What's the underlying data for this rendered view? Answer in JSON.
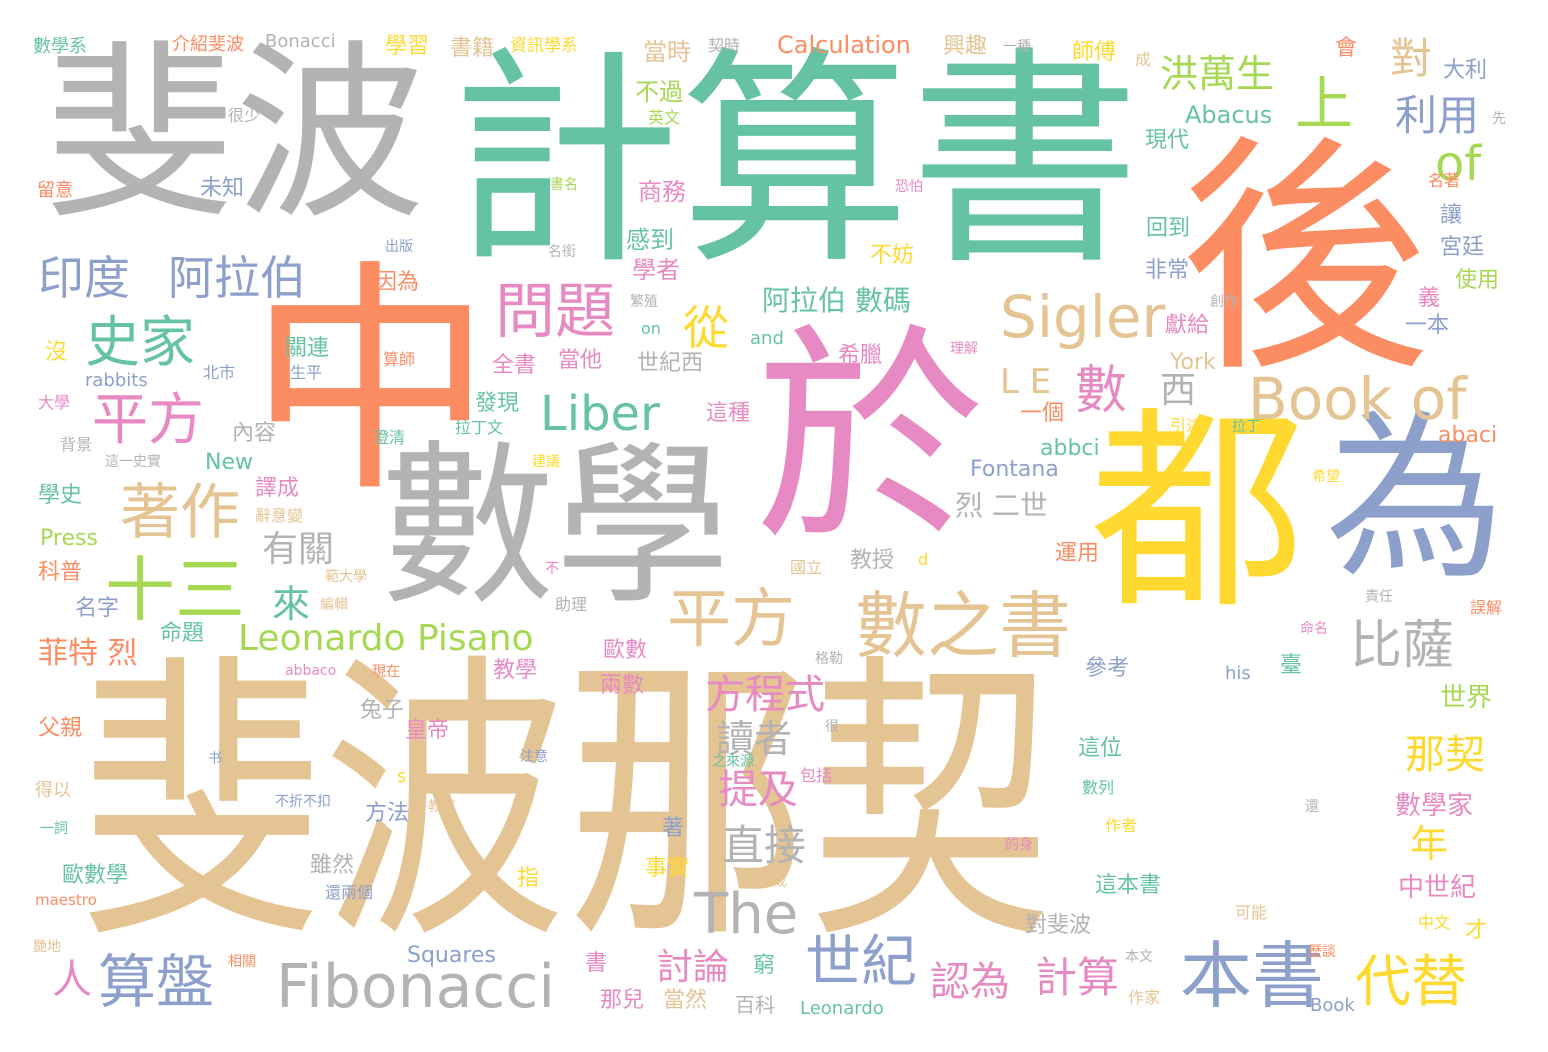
{
  "palette": {
    "teal": "#66c2a5",
    "orange": "#fc8d62",
    "blue": "#8da0cb",
    "pink": "#e78ac3",
    "green": "#a6d854",
    "yellow": "#ffd92f",
    "tan": "#e5c494",
    "gray": "#b3b3b3"
  },
  "words": [
    {
      "text": "斐波那契",
      "color": "tan"
    },
    {
      "text": "計算書",
      "color": "teal"
    },
    {
      "text": "斐波",
      "color": "gray"
    },
    {
      "text": "於",
      "color": "pink"
    },
    {
      "text": "數學",
      "color": "gray"
    },
    {
      "text": "中",
      "color": "orange"
    },
    {
      "text": "後",
      "color": "orange"
    },
    {
      "text": "都",
      "color": "yellow"
    },
    {
      "text": "為",
      "color": "blue"
    },
    {
      "text": "Fibonacci",
      "color": "gray"
    },
    {
      "text": "數之書",
      "color": "tan"
    },
    {
      "text": "本書",
      "color": "blue"
    },
    {
      "text": "Sigler",
      "color": "tan"
    },
    {
      "text": "Book of",
      "color": "tan"
    },
    {
      "text": "The",
      "color": "gray"
    },
    {
      "text": "Liber",
      "color": "teal"
    },
    {
      "text": "Leonardo Pisano",
      "color": "green"
    },
    {
      "text": "平方",
      "color": "tan"
    },
    {
      "text": "著作",
      "color": "tan"
    },
    {
      "text": "十三",
      "color": "green"
    },
    {
      "text": "問題",
      "color": "pink"
    },
    {
      "text": "史家",
      "color": "teal"
    },
    {
      "text": "印度",
      "color": "blue"
    },
    {
      "text": "阿拉伯",
      "color": "blue"
    },
    {
      "text": "平方",
      "color": "pink"
    },
    {
      "text": "算盤",
      "color": "blue"
    },
    {
      "text": "世紀",
      "color": "blue"
    },
    {
      "text": "代替",
      "color": "yellow"
    },
    {
      "text": "比薩",
      "color": "gray"
    },
    {
      "text": "洪萬生",
      "color": "green"
    },
    {
      "text": "上",
      "color": "green"
    },
    {
      "text": "of",
      "color": "green"
    },
    {
      "text": "從",
      "color": "yellow"
    },
    {
      "text": "數",
      "color": "pink"
    },
    {
      "text": "利用",
      "color": "blue"
    },
    {
      "text": "對",
      "color": "tan"
    },
    {
      "text": "方程式",
      "color": "pink"
    },
    {
      "text": "直接",
      "color": "gray"
    },
    {
      "text": "讀者",
      "color": "gray"
    },
    {
      "text": "提及",
      "color": "pink"
    },
    {
      "text": "那契",
      "color": "yellow"
    },
    {
      "text": "計算",
      "color": "pink"
    },
    {
      "text": "認為",
      "color": "pink"
    },
    {
      "text": "討論",
      "color": "pink"
    },
    {
      "text": "有關",
      "color": "gray"
    },
    {
      "text": "來",
      "color": "teal"
    },
    {
      "text": "人",
      "color": "pink"
    },
    {
      "text": "L E",
      "color": "tan"
    },
    {
      "text": "西",
      "color": "gray"
    },
    {
      "text": "阿拉伯 數碼",
      "color": "teal"
    },
    {
      "text": "Calculation",
      "color": "orange"
    },
    {
      "text": "年",
      "color": "yellow"
    },
    {
      "text": "菲特 烈",
      "color": "orange"
    },
    {
      "text": "烈 二世",
      "color": "gray"
    },
    {
      "text": "中世紀",
      "color": "pink"
    },
    {
      "text": "數學家",
      "color": "pink"
    },
    {
      "text": "世界",
      "color": "green"
    },
    {
      "text": "Abacus",
      "color": "teal"
    },
    {
      "text": "Fontana",
      "color": "blue"
    },
    {
      "text": "abbci",
      "color": "teal"
    },
    {
      "text": "abaci",
      "color": "orange"
    },
    {
      "text": "York",
      "color": "tan"
    },
    {
      "text": "New",
      "color": "teal"
    },
    {
      "text": "Press",
      "color": "green"
    },
    {
      "text": "Squares",
      "color": "blue"
    },
    {
      "text": "Bonacci",
      "color": "gray"
    },
    {
      "text": "rabbits",
      "color": "blue"
    },
    {
      "text": "and",
      "color": "teal"
    },
    {
      "text": "on",
      "color": "teal"
    },
    {
      "text": "his",
      "color": "blue"
    },
    {
      "text": "Leonardo",
      "color": "teal"
    },
    {
      "text": "Book",
      "color": "blue"
    },
    {
      "text": "maestro",
      "color": "orange"
    },
    {
      "text": "abbaco",
      "color": "pink"
    },
    {
      "text": "數學系",
      "color": "teal"
    },
    {
      "text": "介紹斐波",
      "color": "orange"
    },
    {
      "text": "學習",
      "color": "yellow"
    },
    {
      "text": "書籍",
      "color": "tan"
    },
    {
      "text": "資訊學系",
      "color": "yellow"
    },
    {
      "text": "當時",
      "color": "tan"
    },
    {
      "text": "契時",
      "color": "gray"
    },
    {
      "text": "興趣",
      "color": "tan"
    },
    {
      "text": "一種",
      "color": "gray"
    },
    {
      "text": "師傅",
      "color": "yellow"
    },
    {
      "text": "成",
      "color": "tan"
    },
    {
      "text": "會",
      "color": "orange"
    },
    {
      "text": "大利",
      "color": "blue"
    },
    {
      "text": "不過",
      "color": "green"
    },
    {
      "text": "英文",
      "color": "green"
    },
    {
      "text": "現代",
      "color": "teal"
    },
    {
      "text": "先",
      "color": "gray"
    },
    {
      "text": "很少",
      "color": "gray"
    },
    {
      "text": "未知",
      "color": "blue"
    },
    {
      "text": "留意",
      "color": "orange"
    },
    {
      "text": "書名",
      "color": "green"
    },
    {
      "text": "商務",
      "color": "pink"
    },
    {
      "text": "恐怕",
      "color": "pink"
    },
    {
      "text": "名著",
      "color": "orange"
    },
    {
      "text": "出版",
      "color": "blue"
    },
    {
      "text": "名銜",
      "color": "gray"
    },
    {
      "text": "感到",
      "color": "teal"
    },
    {
      "text": "學者",
      "color": "pink"
    },
    {
      "text": "回到",
      "color": "teal"
    },
    {
      "text": "不妨",
      "color": "yellow"
    },
    {
      "text": "讓",
      "color": "blue"
    },
    {
      "text": "宮廷",
      "color": "blue"
    },
    {
      "text": "因為",
      "color": "orange"
    },
    {
      "text": "繁殖",
      "color": "gray"
    },
    {
      "text": "非常",
      "color": "blue"
    },
    {
      "text": "創作",
      "color": "gray"
    },
    {
      "text": "使用",
      "color": "green"
    },
    {
      "text": "義",
      "color": "pink"
    },
    {
      "text": "一本",
      "color": "blue"
    },
    {
      "text": "獻給",
      "color": "pink"
    },
    {
      "text": "理解",
      "color": "pink"
    },
    {
      "text": "沒",
      "color": "yellow"
    },
    {
      "text": "關連",
      "color": "teal"
    },
    {
      "text": "生平",
      "color": "blue"
    },
    {
      "text": "算師",
      "color": "orange"
    },
    {
      "text": "全書",
      "color": "pink"
    },
    {
      "text": "當他",
      "color": "pink"
    },
    {
      "text": "世紀西",
      "color": "gray"
    },
    {
      "text": "希臘",
      "color": "pink"
    },
    {
      "text": "北市",
      "color": "blue"
    },
    {
      "text": "大學",
      "color": "pink"
    },
    {
      "text": "發現",
      "color": "teal"
    },
    {
      "text": "一個",
      "color": "orange"
    },
    {
      "text": "這種",
      "color": "pink"
    },
    {
      "text": "背景",
      "color": "gray"
    },
    {
      "text": "拉丁文",
      "color": "teal"
    },
    {
      "text": "內容",
      "color": "gray"
    },
    {
      "text": "澄清",
      "color": "teal"
    },
    {
      "text": "引述",
      "color": "yellow"
    },
    {
      "text": "拉丁",
      "color": "teal"
    },
    {
      "text": "這一史實",
      "color": "gray"
    },
    {
      "text": "建議",
      "color": "yellow"
    },
    {
      "text": "學史",
      "color": "teal"
    },
    {
      "text": "譯成",
      "color": "pink"
    },
    {
      "text": "辭意變",
      "color": "tan"
    },
    {
      "text": "希望",
      "color": "yellow"
    },
    {
      "text": "教授",
      "color": "gray"
    },
    {
      "text": "d",
      "color": "yellow"
    },
    {
      "text": "運用",
      "color": "orange"
    },
    {
      "text": "科普",
      "color": "orange"
    },
    {
      "text": "不",
      "color": "pink"
    },
    {
      "text": "範大學",
      "color": "tan"
    },
    {
      "text": "國立",
      "color": "tan"
    },
    {
      "text": "名字",
      "color": "blue"
    },
    {
      "text": "編輯",
      "color": "tan"
    },
    {
      "text": "助理",
      "color": "gray"
    },
    {
      "text": "責任",
      "color": "gray"
    },
    {
      "text": "誤解",
      "color": "orange"
    },
    {
      "text": "命題",
      "color": "teal"
    },
    {
      "text": "歐數",
      "color": "pink"
    },
    {
      "text": "格勒",
      "color": "gray"
    },
    {
      "text": "命名",
      "color": "pink"
    },
    {
      "text": "參考",
      "color": "blue"
    },
    {
      "text": "臺",
      "color": "teal"
    },
    {
      "text": "教學",
      "color": "pink"
    },
    {
      "text": "現在",
      "color": "orange"
    },
    {
      "text": "兩數",
      "color": "pink"
    },
    {
      "text": "兔子",
      "color": "gray"
    },
    {
      "text": "父親",
      "color": "orange"
    },
    {
      "text": "皇帝",
      "color": "pink"
    },
    {
      "text": "很",
      "color": "gray"
    },
    {
      "text": "這位",
      "color": "teal"
    },
    {
      "text": "包括",
      "color": "pink"
    },
    {
      "text": "之來源",
      "color": "teal"
    },
    {
      "text": "注意",
      "color": "blue"
    },
    {
      "text": "书",
      "color": "blue"
    },
    {
      "text": "s",
      "color": "yellow"
    },
    {
      "text": "得以",
      "color": "tan"
    },
    {
      "text": "不折不扣",
      "color": "blue"
    },
    {
      "text": "數列",
      "color": "teal"
    },
    {
      "text": "還",
      "color": "gray"
    },
    {
      "text": "方法",
      "color": "blue"
    },
    {
      "text": "教育",
      "color": "tan"
    },
    {
      "text": "一詞",
      "color": "teal"
    },
    {
      "text": "著",
      "color": "blue"
    },
    {
      "text": "作者",
      "color": "yellow"
    },
    {
      "text": "的身",
      "color": "pink"
    },
    {
      "text": "雖然",
      "color": "gray"
    },
    {
      "text": "事實",
      "color": "yellow"
    },
    {
      "text": "指",
      "color": "yellow"
    },
    {
      "text": "歐數學",
      "color": "teal"
    },
    {
      "text": "這本書",
      "color": "teal"
    },
    {
      "text": "還兩個",
      "color": "blue"
    },
    {
      "text": "直譯成",
      "color": "tan"
    },
    {
      "text": "可能",
      "color": "tan"
    },
    {
      "text": "中文",
      "color": "yellow"
    },
    {
      "text": "才",
      "color": "yellow"
    },
    {
      "text": "對斐波",
      "color": "gray"
    },
    {
      "text": "窮",
      "color": "teal"
    },
    {
      "text": "書",
      "color": "pink"
    },
    {
      "text": "本文",
      "color": "gray"
    },
    {
      "text": "歷談",
      "color": "orange"
    },
    {
      "text": "作家",
      "color": "tan"
    },
    {
      "text": "那兒",
      "color": "pink"
    },
    {
      "text": "當然",
      "color": "tan"
    },
    {
      "text": "百科",
      "color": "gray"
    },
    {
      "text": "艷地",
      "color": "tan"
    },
    {
      "text": "相關",
      "color": "orange"
    }
  ]
}
